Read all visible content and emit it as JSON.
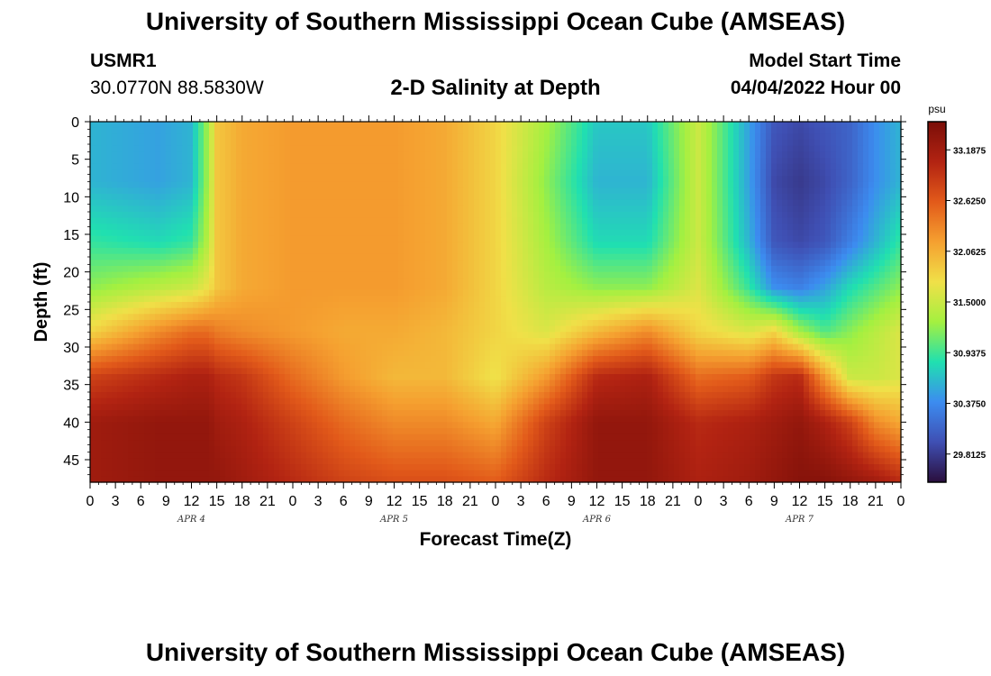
{
  "page": {
    "title_top": "University of Southern Mississippi Ocean Cube (AMSEAS)",
    "title_bottom": "University of Southern Mississippi Ocean Cube (AMSEAS)",
    "station": "USMR1",
    "coords": "30.0770N  88.5830W",
    "subtitle": "2-D Salinity at Depth",
    "start_label": "Model Start Time",
    "start_time": "04/04/2022 Hour 00"
  },
  "chart_data": {
    "type": "heatmap",
    "title": "2-D Salinity at Depth",
    "xlabel": "Forecast Time(Z)",
    "ylabel": "Depth (ft)",
    "x_tick_labels": [
      "0",
      "3",
      "6",
      "9",
      "12",
      "15",
      "18",
      "21",
      "0",
      "3",
      "6",
      "9",
      "12",
      "15",
      "18",
      "21",
      "0",
      "3",
      "6",
      "9",
      "12",
      "15",
      "18",
      "21",
      "0",
      "3",
      "6",
      "9",
      "12",
      "15",
      "18",
      "21",
      "0"
    ],
    "x_range_hours": [
      0,
      96
    ],
    "day_labels": [
      {
        "label": "APR 4",
        "hour": 12
      },
      {
        "label": "APR 5",
        "hour": 36
      },
      {
        "label": "APR 6",
        "hour": 60
      },
      {
        "label": "APR 7",
        "hour": 84
      }
    ],
    "y_ticks": [
      0,
      5,
      10,
      15,
      20,
      25,
      30,
      35,
      40,
      45
    ],
    "y_range_ft": [
      0,
      48
    ],
    "y_inverted": true,
    "colorbar": {
      "unit": "psu",
      "min": 29.5,
      "max": 33.5,
      "ticks": [
        "33.1875",
        "32.6250",
        "32.0625",
        "31.5000",
        "30.9375",
        "30.3750",
        "29.8125"
      ]
    },
    "depths_ft": [
      0,
      8,
      16,
      22,
      28,
      34,
      40,
      48
    ],
    "hours": [
      0,
      8,
      12,
      14,
      15,
      18,
      24,
      30,
      36,
      42,
      48,
      54,
      60,
      66,
      72,
      78,
      81,
      84,
      87,
      90,
      93,
      96
    ],
    "salinity_psu": [
      [
        30.6,
        30.5,
        30.6,
        31.3,
        31.9,
        32.1,
        32.2,
        32.2,
        32.2,
        32.1,
        31.8,
        31.3,
        30.7,
        30.7,
        31.5,
        30.5,
        30.0,
        29.9,
        30.0,
        30.1,
        30.4,
        30.6
      ],
      [
        30.6,
        30.5,
        30.6,
        31.3,
        31.9,
        32.1,
        32.2,
        32.2,
        32.2,
        32.1,
        31.8,
        31.2,
        30.6,
        30.6,
        31.5,
        30.5,
        29.9,
        29.8,
        29.9,
        30.1,
        30.4,
        30.6
      ],
      [
        30.9,
        30.8,
        30.9,
        31.4,
        31.9,
        32.1,
        32.2,
        32.2,
        32.2,
        32.1,
        31.8,
        31.3,
        30.8,
        30.8,
        31.5,
        30.6,
        30.0,
        29.9,
        30.0,
        30.3,
        30.6,
        30.9
      ],
      [
        31.2,
        31.4,
        31.5,
        31.7,
        31.9,
        32.1,
        32.2,
        32.2,
        32.2,
        32.1,
        31.8,
        31.4,
        31.2,
        31.2,
        31.6,
        30.9,
        30.4,
        30.3,
        30.5,
        30.8,
        31.0,
        31.2
      ],
      [
        31.8,
        32.3,
        32.5,
        32.5,
        32.4,
        32.3,
        32.2,
        32.1,
        32.1,
        32.0,
        31.8,
        31.6,
        32.0,
        32.3,
        31.8,
        31.6,
        31.8,
        31.3,
        31.0,
        31.2,
        31.4,
        31.6
      ],
      [
        32.8,
        33.0,
        33.1,
        33.1,
        33.0,
        32.9,
        32.5,
        32.2,
        32.0,
        32.0,
        31.7,
        32.2,
        33.0,
        33.1,
        32.5,
        32.6,
        32.9,
        33.0,
        32.2,
        31.5,
        31.5,
        31.6
      ],
      [
        33.2,
        33.3,
        33.3,
        33.3,
        33.2,
        33.1,
        32.8,
        32.5,
        32.3,
        32.3,
        32.1,
        32.8,
        33.3,
        33.3,
        33.0,
        33.1,
        33.2,
        33.3,
        33.1,
        32.8,
        32.3,
        32.1
      ],
      [
        33.2,
        33.3,
        33.3,
        33.3,
        33.3,
        33.2,
        33.0,
        32.8,
        32.7,
        32.7,
        32.6,
        33.0,
        33.3,
        33.3,
        33.1,
        33.2,
        33.3,
        33.4,
        33.4,
        33.3,
        33.2,
        33.0
      ]
    ],
    "colormap_stops": [
      "#2a0e3c",
      "#3f4fb3",
      "#3c8cf0",
      "#20e0b0",
      "#a4f040",
      "#f0e048",
      "#f5a030",
      "#e25a1a",
      "#b22312",
      "#7a0e08"
    ]
  }
}
